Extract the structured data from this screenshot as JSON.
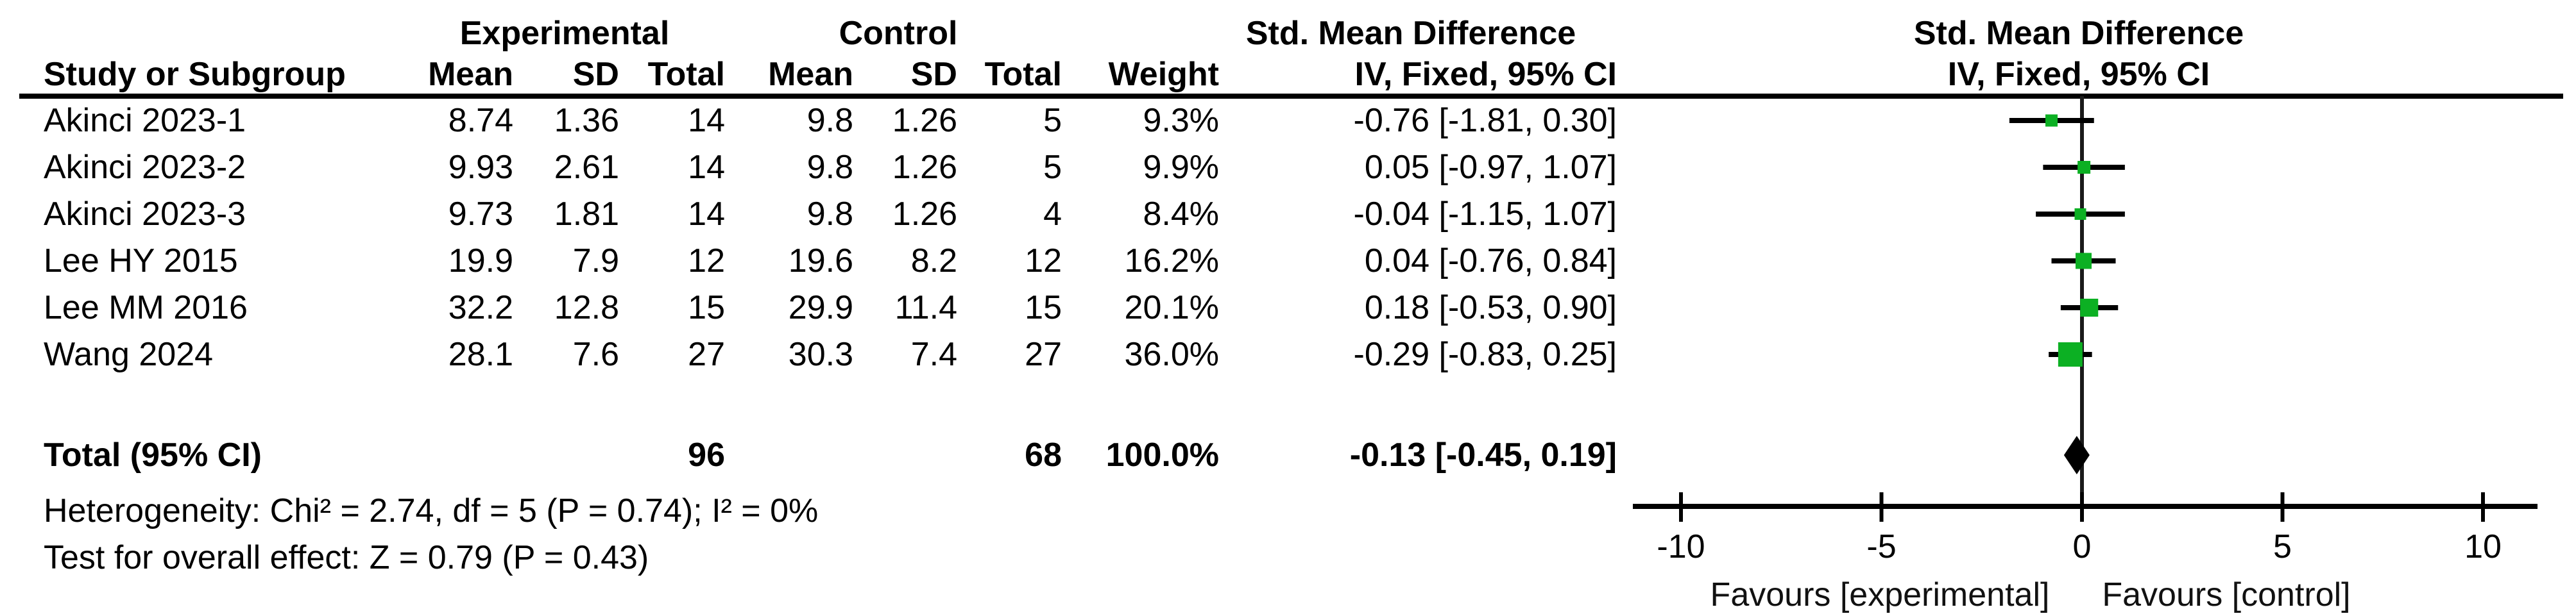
{
  "table": {
    "group1_header": "Experimental",
    "group2_header": "Control",
    "effect_col_header": "Std. Mean Difference",
    "plot_col_header": "Std. Mean Difference",
    "col_study": "Study or Subgroup",
    "col_mean_e": "Mean",
    "col_sd_e": "SD",
    "col_total_e": "Total",
    "col_mean_c": "Mean",
    "col_sd_c": "SD",
    "col_total_c": "Total",
    "col_weight": "Weight",
    "effect_subheader": "IV, Fixed, 95% CI",
    "plot_subheader": "IV, Fixed, 95% CI"
  },
  "studies": [
    {
      "name": "Akinci 2023-1",
      "mean_e": "8.74",
      "sd_e": "1.36",
      "total_e": "14",
      "mean_c": "9.8",
      "sd_c": "1.26",
      "total_c": "5",
      "weight": "9.3%",
      "effect": "-0.76 [-1.81, 0.30]"
    },
    {
      "name": "Akinci 2023-2",
      "mean_e": "9.93",
      "sd_e": "2.61",
      "total_e": "14",
      "mean_c": "9.8",
      "sd_c": "1.26",
      "total_c": "5",
      "weight": "9.9%",
      "effect": "0.05 [-0.97, 1.07]"
    },
    {
      "name": "Akinci 2023-3",
      "mean_e": "9.73",
      "sd_e": "1.81",
      "total_e": "14",
      "mean_c": "9.8",
      "sd_c": "1.26",
      "total_c": "4",
      "weight": "8.4%",
      "effect": "-0.04 [-1.15, 1.07]"
    },
    {
      "name": "Lee HY 2015",
      "mean_e": "19.9",
      "sd_e": "7.9",
      "total_e": "12",
      "mean_c": "19.6",
      "sd_c": "8.2",
      "total_c": "12",
      "weight": "16.2%",
      "effect": "0.04 [-0.76, 0.84]"
    },
    {
      "name": "Lee MM 2016",
      "mean_e": "32.2",
      "sd_e": "12.8",
      "total_e": "15",
      "mean_c": "29.9",
      "sd_c": "11.4",
      "total_c": "15",
      "weight": "20.1%",
      "effect": "0.18 [-0.53, 0.90]"
    },
    {
      "name": "Wang 2024",
      "mean_e": "28.1",
      "sd_e": "7.6",
      "total_e": "27",
      "mean_c": "30.3",
      "sd_c": "7.4",
      "total_c": "27",
      "weight": "36.0%",
      "effect": "-0.29 [-0.83, 0.25]"
    }
  ],
  "total": {
    "label": "Total (95% CI)",
    "total_e": "96",
    "total_c": "68",
    "weight": "100.0%",
    "effect": "-0.13 [-0.45, 0.19]"
  },
  "footer": {
    "heterogeneity": "Heterogeneity: Chi² = 2.74, df = 5 (P = 0.74); I² = 0%",
    "overall_effect": "Test for overall effect: Z = 0.79 (P = 0.43)"
  },
  "axis": {
    "ticks": [
      "-10",
      "-5",
      "0",
      "5",
      "10"
    ],
    "favours_left": "Favours [experimental]",
    "favours_right": "Favours [control]"
  },
  "chart_data": {
    "type": "forest",
    "effect_measure": "Std. Mean Difference, IV, Fixed, 95% CI",
    "x_axis": {
      "min": -10,
      "max": 10,
      "ticks": [
        -10,
        -5,
        0,
        5,
        10
      ]
    },
    "studies": [
      {
        "name": "Akinci 2023-1",
        "smd": -0.76,
        "ci_low": -1.81,
        "ci_high": 0.3,
        "weight_pct": 9.3
      },
      {
        "name": "Akinci 2023-2",
        "smd": 0.05,
        "ci_low": -0.97,
        "ci_high": 1.07,
        "weight_pct": 9.9
      },
      {
        "name": "Akinci 2023-3",
        "smd": -0.04,
        "ci_low": -1.15,
        "ci_high": 1.07,
        "weight_pct": 8.4
      },
      {
        "name": "Lee HY 2015",
        "smd": 0.04,
        "ci_low": -0.76,
        "ci_high": 0.84,
        "weight_pct": 16.2
      },
      {
        "name": "Lee MM 2016",
        "smd": 0.18,
        "ci_low": -0.53,
        "ci_high": 0.9,
        "weight_pct": 20.1
      },
      {
        "name": "Wang 2024",
        "smd": -0.29,
        "ci_low": -0.83,
        "ci_high": 0.25,
        "weight_pct": 36.0
      }
    ],
    "total": {
      "smd": -0.13,
      "ci_low": -0.45,
      "ci_high": 0.19,
      "total_e": 96,
      "total_c": 68,
      "weight_pct": 100.0
    },
    "heterogeneity": {
      "chi2": 2.74,
      "df": 5,
      "p": 0.74,
      "i2_pct": 0
    },
    "overall_effect": {
      "z": 0.79,
      "p": 0.43
    },
    "marker_color": "#0cb023",
    "line_color": "#000000",
    "diamond_color": "#000000"
  }
}
